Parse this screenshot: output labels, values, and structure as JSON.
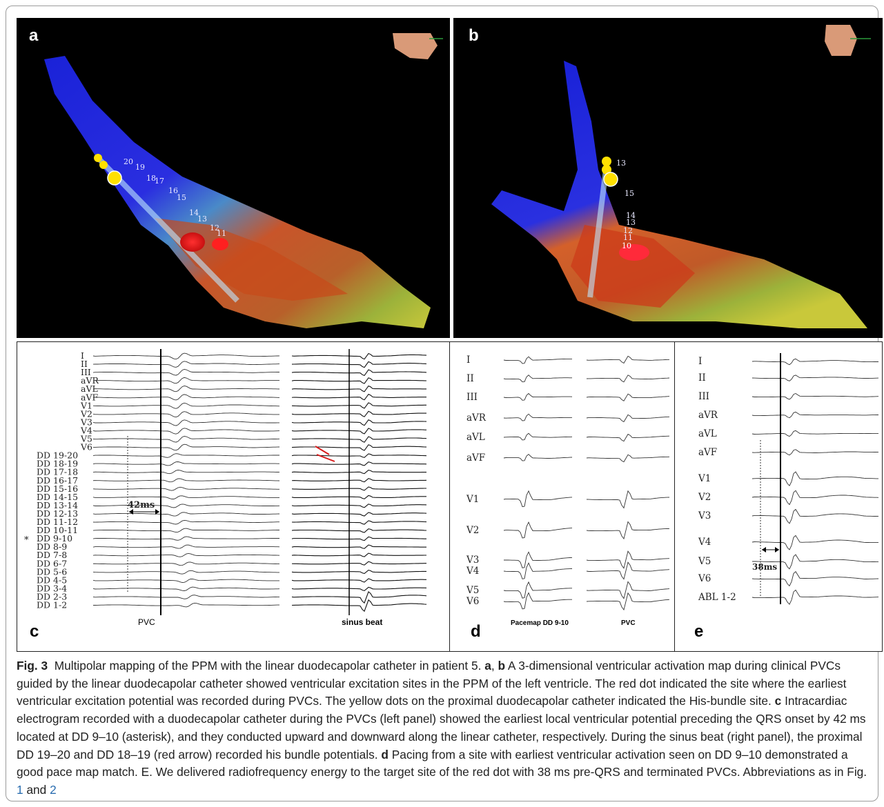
{
  "panels": {
    "a": {
      "label": "a"
    },
    "b": {
      "label": "b"
    },
    "c": {
      "label": "c",
      "surface_leads": [
        "I",
        "II",
        "III",
        "aVR",
        "aVL",
        "aVF",
        "V1",
        "V2",
        "V3",
        "V4",
        "V5",
        "V6"
      ],
      "dd_leads": [
        "DD 19-20",
        "DD 18-19",
        "DD 17-18",
        "DD 16-17",
        "DD 15-16",
        "DD 14-15",
        "DD 13-14",
        "DD 12-13",
        "DD 11-12",
        "DD 10-11",
        "DD 9-10",
        "DD 8-9",
        "DD 7-8",
        "DD 6-7",
        "DD 5-6",
        "DD 4-5",
        "DD 3-4",
        "DD 2-3",
        "DD 1-2"
      ],
      "asterisk": "*",
      "interval": "42ms",
      "pvc_label": "PVC",
      "sinus_label": "sinus beat"
    },
    "d": {
      "label": "d",
      "leads": [
        "I",
        "II",
        "III",
        "aVR",
        "aVL",
        "aVF",
        "V1",
        "V2",
        "V3",
        "V4",
        "V5",
        "V6"
      ],
      "left_label": "Pacemap DD 9-10",
      "right_label": "PVC"
    },
    "e": {
      "label": "e",
      "leads": [
        "I",
        "II",
        "III",
        "aVR",
        "aVL",
        "aVF",
        "V1",
        "V2",
        "V3",
        "V4",
        "V5",
        "V6",
        "ABL 1-2"
      ],
      "interval": "38ms"
    },
    "map_numbers_a": [
      "20",
      "19",
      "18",
      "17",
      "16",
      "15",
      "14",
      "13",
      "12",
      "11"
    ],
    "map_numbers_b": [
      "13",
      "15",
      "14",
      "13",
      "12",
      "11",
      "10"
    ]
  },
  "caption": {
    "fig": "Fig. 3",
    "intro": "Multipolar mapping of the PPM with the linear duodecapolar catheter in patient 5.",
    "ab": "a",
    "ab2": "b",
    "ab_text": "A 3-dimensional ventricular activation map during clinical PVCs guided by the linear duodecapolar catheter showed ventricular excitation sites in the PPM of the left ventricle. The red dot indicated the site where the earliest ventricular excitation potential was recorded during PVCs. The yellow dots on the proximal duodecapolar catheter indicated the His-bundle site.",
    "c": "c",
    "c_text": "Intracardiac electrogram recorded with a duodecapolar catheter during the PVCs (left panel) showed the earliest local ventricular potential preceding the QRS onset by 42 ms located at DD 9–10 (asterisk), and they conducted upward and downward along the linear catheter, respectively. During the sinus beat (right panel), the proximal DD 19–20 and DD 18–19 (red arrow) recorded his bundle potentials.",
    "d": "d",
    "d_text": "Pacing from a site with earliest ventricular activation seen on DD 9–10 demonstrated a good pace map match. E. We delivered radiofrequency energy to the target site of the red dot with 38 ms pre-QRS and terminated PVCs. Abbreviations as in Fig.",
    "ref1": "1",
    "and": "and",
    "ref2": "2"
  }
}
